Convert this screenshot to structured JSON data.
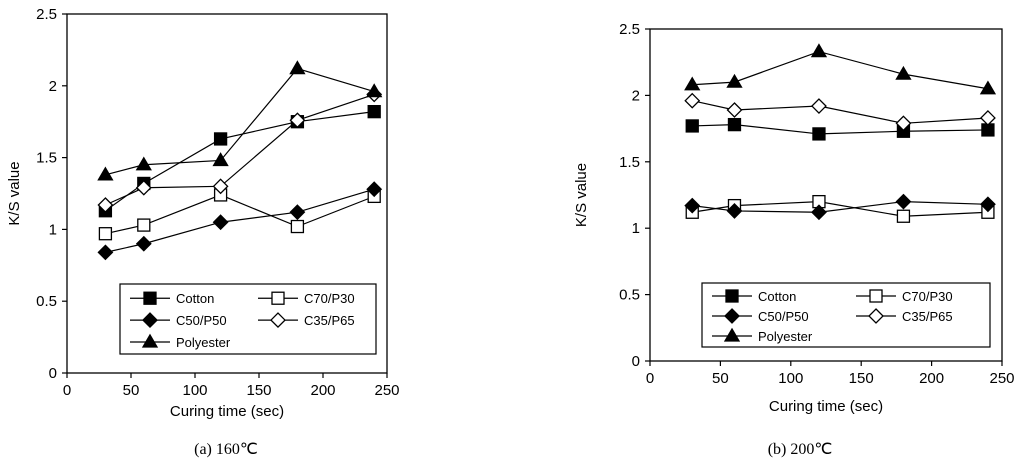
{
  "chart_data": [
    {
      "type": "line",
      "caption": "(a)  160℃",
      "xlabel": "Curing time (sec)",
      "ylabel": "K/S value",
      "xlim": [
        0,
        250
      ],
      "ylim": [
        0,
        2.5
      ],
      "xticks": [
        "0",
        "50",
        "100",
        "150",
        "200",
        "250"
      ],
      "yticks": [
        "0",
        "0.5",
        "1",
        "1.5",
        "2",
        "2.5"
      ],
      "grid": false,
      "legend_position": "bottom-center",
      "x": [
        30,
        60,
        120,
        180,
        240
      ],
      "series": [
        {
          "name": "Cotton",
          "marker": "square-filled",
          "values": [
            1.13,
            1.32,
            1.63,
            1.75,
            1.82
          ]
        },
        {
          "name": "C70/P30",
          "marker": "square-open",
          "values": [
            0.97,
            1.03,
            1.24,
            1.02,
            1.23
          ]
        },
        {
          "name": "C50/P50",
          "marker": "diamond-filled",
          "values": [
            0.84,
            0.9,
            1.05,
            1.12,
            1.28
          ]
        },
        {
          "name": "C35/P65",
          "marker": "diamond-open",
          "values": [
            1.17,
            1.29,
            1.3,
            1.76,
            1.94
          ]
        },
        {
          "name": "Polyester",
          "marker": "triangle-filled",
          "values": [
            1.38,
            1.45,
            1.48,
            2.12,
            1.96
          ]
        }
      ]
    },
    {
      "type": "line",
      "caption": "(b)  200℃",
      "xlabel": "Curing time (sec)",
      "ylabel": "K/S value",
      "xlim": [
        0,
        250
      ],
      "ylim": [
        0,
        2.5
      ],
      "xticks": [
        "0",
        "50",
        "100",
        "150",
        "200",
        "250"
      ],
      "yticks": [
        "0",
        "0.5",
        "1",
        "1.5",
        "2",
        "2.5"
      ],
      "grid": false,
      "legend_position": "bottom-center",
      "x": [
        30,
        60,
        120,
        180,
        240
      ],
      "series": [
        {
          "name": "Cotton",
          "marker": "square-filled",
          "values": [
            1.77,
            1.78,
            1.71,
            1.73,
            1.74
          ]
        },
        {
          "name": "C70/P30",
          "marker": "square-open",
          "values": [
            1.12,
            1.17,
            1.2,
            1.09,
            1.12
          ]
        },
        {
          "name": "C50/P50",
          "marker": "diamond-filled",
          "values": [
            1.17,
            1.13,
            1.12,
            1.2,
            1.18
          ]
        },
        {
          "name": "C35/P65",
          "marker": "diamond-open",
          "values": [
            1.96,
            1.89,
            1.92,
            1.79,
            1.83
          ]
        },
        {
          "name": "Polyester",
          "marker": "triangle-filled",
          "values": [
            2.08,
            2.1,
            2.33,
            2.16,
            2.05
          ]
        }
      ]
    }
  ]
}
